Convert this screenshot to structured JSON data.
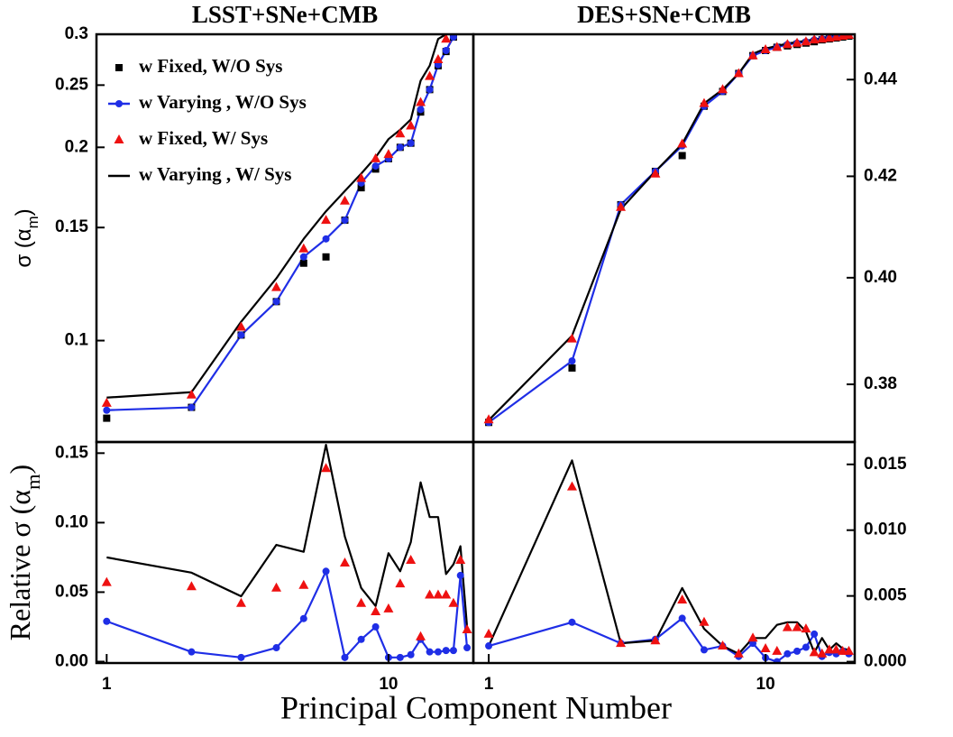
{
  "figure": {
    "xlabel": "Principal Component Number"
  },
  "chart_data": [
    {
      "type": "line",
      "title": "LSST+SNe+CMB",
      "xscale": "log",
      "yscale": "log",
      "xlim": [
        0.92,
        20
      ],
      "ylim": [
        0.0695,
        0.3
      ],
      "yticks": [
        0.1,
        0.15,
        0.2,
        0.25,
        0.3
      ],
      "yaxis": "left",
      "ylabel": [
        "σ (α",
        "m",
        ")"
      ],
      "legend": "upper left",
      "series": [
        {
          "name": "w Fixed, W/O Sys",
          "color": "#000000",
          "style": "marker",
          "marker": "square",
          "x": [
            1,
            2,
            3,
            4,
            5,
            6,
            7,
            8,
            9,
            10,
            11,
            12,
            13,
            14,
            15,
            16,
            17
          ],
          "values": [
            0.0757,
            0.0787,
            0.102,
            0.115,
            0.132,
            0.135,
            0.154,
            0.173,
            0.185,
            0.192,
            0.2,
            0.203,
            0.227,
            0.246,
            0.268,
            0.282,
            0.297
          ]
        },
        {
          "name": "w Varying , W/O Sys",
          "color": "#1f2ee6",
          "style": "line+marker",
          "marker": "circle",
          "x": [
            1,
            2,
            3,
            4,
            5,
            6,
            7,
            8,
            9,
            10,
            11,
            12,
            13,
            14,
            15,
            16,
            17
          ],
          "values": [
            0.0779,
            0.0787,
            0.102,
            0.115,
            0.135,
            0.144,
            0.154,
            0.176,
            0.187,
            0.192,
            0.2,
            0.203,
            0.229,
            0.246,
            0.269,
            0.283,
            0.297
          ]
        },
        {
          "name": "w Fixed, W/ Sys",
          "color": "#ee1111",
          "style": "marker",
          "marker": "triangle",
          "x": [
            1,
            2,
            3,
            4,
            5,
            6,
            7,
            8,
            9,
            10,
            11,
            12,
            13,
            14,
            15,
            16
          ],
          "values": [
            0.0799,
            0.0823,
            0.105,
            0.121,
            0.139,
            0.154,
            0.165,
            0.179,
            0.192,
            0.195,
            0.21,
            0.216,
            0.235,
            0.258,
            0.274,
            0.295
          ]
        },
        {
          "name": "w Varying , W/ Sys",
          "color": "#000000",
          "style": "line",
          "marker": "none",
          "x": [
            1,
            2,
            3,
            4,
            5,
            6,
            7,
            8,
            9,
            10,
            11,
            12,
            13,
            14,
            15,
            16
          ],
          "values": [
            0.0815,
            0.0831,
            0.107,
            0.125,
            0.144,
            0.159,
            0.171,
            0.182,
            0.193,
            0.206,
            0.213,
            0.221,
            0.254,
            0.268,
            0.295,
            0.3
          ]
        }
      ]
    },
    {
      "type": "line",
      "title": "DES+SNe+CMB",
      "xscale": "log",
      "yscale": "log",
      "xlim": [
        0.88,
        21
      ],
      "ylim": [
        0.3696,
        0.4497
      ],
      "yticks": [
        0.38,
        {
          "value": 0.4,
          "label": "0.40"
        },
        0.42,
        0.44
      ],
      "yaxis": "right",
      "series": [
        {
          "color": "#000000",
          "style": "marker",
          "marker": "square",
          "x": [
            1,
            2,
            3,
            4,
            5,
            6,
            7,
            8,
            9,
            10,
            11,
            12,
            13,
            14,
            15,
            16,
            17,
            18,
            19,
            20
          ],
          "values": [
            0.3731,
            0.383,
            0.4143,
            0.421,
            0.4242,
            0.4344,
            0.4375,
            0.4413,
            0.4451,
            0.4462,
            0.4469,
            0.4472,
            0.4475,
            0.4478,
            0.4481,
            0.4485,
            0.4487,
            0.4489,
            0.4491,
            0.4493
          ]
        },
        {
          "color": "#1f2ee6",
          "style": "line+marker",
          "marker": "circle",
          "x": [
            1,
            2,
            3,
            4,
            5,
            6,
            7,
            8,
            9,
            10,
            11,
            12,
            13,
            14,
            15,
            16,
            17,
            18,
            19,
            20
          ],
          "values": [
            0.3731,
            0.3843,
            0.4143,
            0.421,
            0.4262,
            0.4344,
            0.4375,
            0.4413,
            0.4451,
            0.4462,
            0.4469,
            0.4475,
            0.4478,
            0.4481,
            0.4485,
            0.4487,
            0.4489,
            0.4491,
            0.4493,
            0.4495
          ]
        },
        {
          "color": "#ee1111",
          "style": "marker",
          "marker": "triangle",
          "x": [
            1,
            2,
            3,
            4,
            5,
            6,
            7,
            8,
            9,
            10,
            11,
            12,
            13,
            14,
            15,
            16,
            17,
            18,
            19,
            20
          ],
          "values": [
            0.3736,
            0.3884,
            0.4138,
            0.4205,
            0.4266,
            0.435,
            0.4379,
            0.4413,
            0.4451,
            0.4464,
            0.4469,
            0.4475,
            0.4478,
            0.4481,
            0.4485,
            0.4487,
            0.4489,
            0.4491,
            0.4493,
            0.4495
          ]
        },
        {
          "color": "#000000",
          "style": "line",
          "marker": "none",
          "x": [
            1,
            2,
            3,
            4,
            5,
            6,
            7,
            8,
            9,
            10,
            11,
            12,
            13,
            14,
            15,
            16,
            17,
            18,
            19,
            20
          ],
          "values": [
            0.3735,
            0.389,
            0.4134,
            0.421,
            0.4266,
            0.435,
            0.4379,
            0.4413,
            0.4455,
            0.4466,
            0.4472,
            0.4477,
            0.448,
            0.4483,
            0.4486,
            0.4488,
            0.449,
            0.4492,
            0.4494,
            0.4496
          ]
        }
      ]
    },
    {
      "type": "line",
      "xscale": "log",
      "yscale": "linear",
      "xlim": [
        0.92,
        20
      ],
      "ylim": [
        -0.001,
        0.158
      ],
      "xticks": [
        1,
        10
      ],
      "yticks": [
        {
          "value": 0,
          "label": "0.00"
        },
        {
          "value": 0.05,
          "label": "0.05"
        },
        {
          "value": 0.1,
          "label": "0.10"
        },
        {
          "value": 0.15,
          "label": "0.15"
        }
      ],
      "yaxis": "left",
      "ylabel": [
        "Relative σ (α",
        "m",
        ")"
      ],
      "series": [
        {
          "color": "#1f2ee6",
          "style": "line+marker",
          "marker": "circle",
          "x": [
            1,
            2,
            3,
            4,
            5,
            6,
            7,
            8,
            9,
            10,
            11,
            12,
            13,
            14,
            15,
            16,
            17,
            18,
            19
          ],
          "values": [
            0.029,
            0.007,
            0.003,
            0.01,
            0.031,
            0.065,
            0.003,
            0.016,
            0.025,
            0.003,
            0.003,
            0.005,
            0.016,
            0.007,
            0.007,
            0.008,
            0.008,
            0.062,
            0.01
          ]
        },
        {
          "color": "#ee1111",
          "style": "marker",
          "marker": "triangle",
          "x": [
            1,
            2,
            3,
            4,
            5,
            6,
            7,
            8,
            9,
            10,
            11,
            12,
            13,
            14,
            15,
            16,
            17,
            18,
            19
          ],
          "values": [
            0.057,
            0.054,
            0.042,
            0.053,
            0.055,
            0.139,
            0.071,
            0.042,
            0.036,
            0.038,
            0.056,
            0.073,
            0.018,
            0.048,
            0.048,
            0.048,
            0.042,
            0.073,
            0.023
          ]
        },
        {
          "color": "#000000",
          "style": "line",
          "marker": "none",
          "x": [
            1,
            2,
            3,
            4,
            5,
            6,
            7,
            8,
            9,
            10,
            11,
            12,
            13,
            14,
            15,
            16,
            17,
            18,
            19
          ],
          "values": [
            0.075,
            0.064,
            0.047,
            0.084,
            0.079,
            0.156,
            0.09,
            0.053,
            0.04,
            0.078,
            0.065,
            0.086,
            0.129,
            0.104,
            0.104,
            0.063,
            0.07,
            0.083,
            0.025
          ]
        }
      ]
    },
    {
      "type": "line",
      "xscale": "log",
      "yscale": "linear",
      "xlim": [
        0.88,
        21
      ],
      "ylim": [
        -0.0001,
        0.0167
      ],
      "xticks": [
        1,
        10
      ],
      "yticks": [
        {
          "value": 0,
          "label": "0.000"
        },
        {
          "value": 0.005,
          "label": "0.005"
        },
        {
          "value": 0.01,
          "label": "0.010"
        },
        {
          "value": 0.015,
          "label": "0.015"
        }
      ],
      "yaxis": "right",
      "series": [
        {
          "color": "#1f2ee6",
          "style": "line+marker",
          "marker": "circle",
          "x": [
            1,
            2,
            3,
            4,
            5,
            6,
            7,
            8,
            9,
            10,
            11,
            12,
            13,
            14,
            15,
            16,
            17,
            18,
            19,
            20
          ],
          "values": [
            0.0012,
            0.003,
            0.0014,
            0.0017,
            0.0033,
            0.0009,
            0.0012,
            0.0004,
            0.0014,
            0.0003,
            0,
            0.0006,
            0.0008,
            0.0011,
            0.0021,
            0.0004,
            0.0007,
            0.0006,
            0.0008,
            0.0006
          ]
        },
        {
          "color": "#ee1111",
          "style": "marker",
          "marker": "triangle",
          "x": [
            1,
            2,
            3,
            4,
            5,
            6,
            7,
            8,
            9,
            10,
            11,
            12,
            13,
            14,
            15,
            16,
            17,
            18,
            19,
            20
          ],
          "values": [
            0.0021,
            0.0133,
            0.0014,
            0.0016,
            0.0047,
            0.003,
            0.0012,
            0.0006,
            0.0018,
            0.001,
            0.0008,
            0.0026,
            0.0026,
            0.0025,
            0.0007,
            0.0006,
            0.0009,
            0.0009,
            0.0008,
            0.0008
          ]
        },
        {
          "color": "#000000",
          "style": "line",
          "marker": "none",
          "x": [
            1,
            2,
            3,
            4,
            5,
            6,
            7,
            8,
            9,
            10,
            11,
            12,
            13,
            14,
            15,
            16,
            17,
            18,
            19,
            20
          ],
          "values": [
            0.0012,
            0.0153,
            0.0014,
            0.0016,
            0.0056,
            0.0025,
            0.0012,
            0.0006,
            0.0018,
            0.0018,
            0.0028,
            0.003,
            0.003,
            0.0023,
            0.0007,
            0.0018,
            0.0009,
            0.0014,
            0.001,
            0.0009
          ]
        }
      ]
    }
  ]
}
